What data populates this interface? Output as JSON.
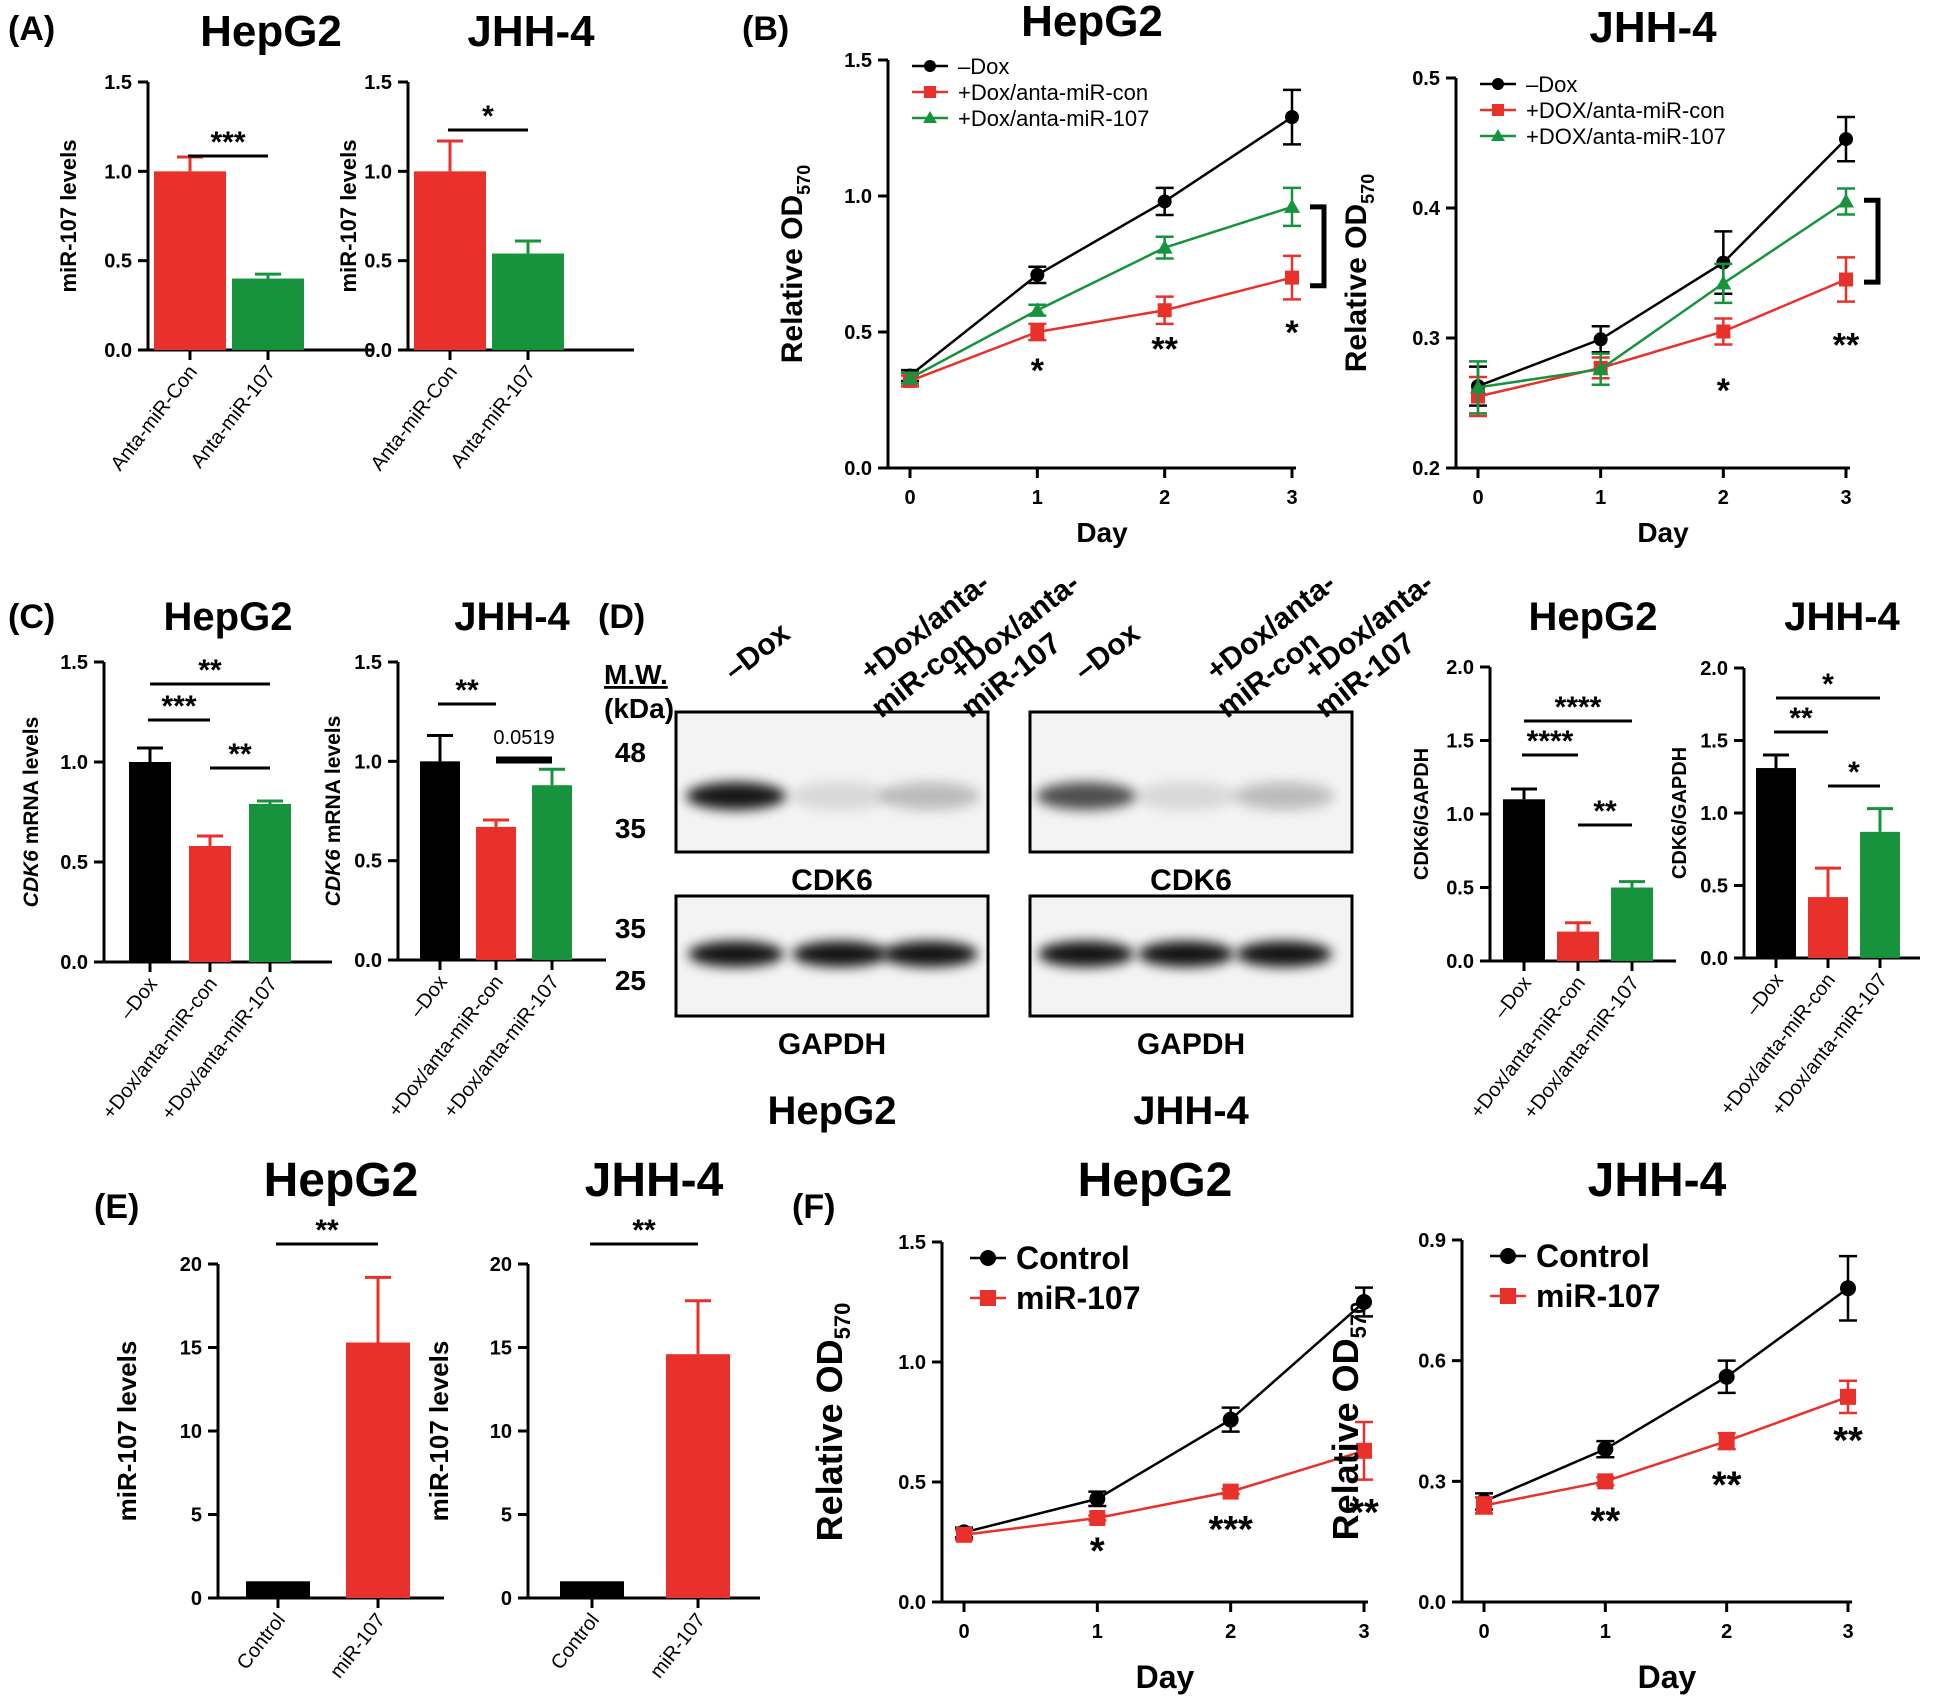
{
  "panel_labels": [
    "(A)",
    "(B)",
    "(C)",
    "(D)",
    "(E)",
    "(F)"
  ],
  "colors": {
    "black": "#000000",
    "red": "#e8312a",
    "green": "#17933e"
  },
  "chart_data": [
    {
      "id": "A1",
      "panel": "(A)",
      "type": "bar",
      "title": "HepG2",
      "ylabel": "miR-107 levels",
      "ylim": [
        0,
        1.5
      ],
      "yticks": [
        "0.0",
        "0.5",
        "1.0",
        "1.5"
      ],
      "categories": [
        "Anta-miR-Con",
        "Anta-miR-107"
      ],
      "values": [
        1.0,
        0.4
      ],
      "errors": [
        0.08,
        0.025
      ],
      "colors": [
        "red",
        "green"
      ],
      "brackets": [
        {
          "from": 0,
          "to": 1,
          "label": "***"
        }
      ]
    },
    {
      "id": "A2",
      "type": "bar",
      "title": "JHH-4",
      "ylabel": "miR-107 levels",
      "ylim": [
        0,
        1.5
      ],
      "yticks": [
        "0.0",
        "0.5",
        "1.0",
        "1.5"
      ],
      "categories": [
        "Anta-miR-Con",
        "Anta-miR-107"
      ],
      "values": [
        1.0,
        0.54
      ],
      "errors": [
        0.17,
        0.07
      ],
      "colors": [
        "red",
        "green"
      ],
      "brackets": [
        {
          "from": 0,
          "to": 1,
          "label": "*"
        }
      ]
    },
    {
      "id": "B1",
      "panel": "(B)",
      "type": "line",
      "title": "HepG2",
      "xlabel": "Day",
      "ylabel": "Relative OD",
      "ylabel_sub": "570",
      "ylim": [
        0,
        1.5
      ],
      "yticks": [
        "0.0",
        "0.5",
        "1.0",
        "1.5"
      ],
      "x": [
        0,
        1,
        2,
        3
      ],
      "xticks": [
        "0",
        "1",
        "2",
        "3"
      ],
      "series": [
        {
          "name": "–Dox",
          "color": "black",
          "marker": "circle",
          "values": [
            0.34,
            0.71,
            0.98,
            1.29
          ],
          "errors": [
            0.02,
            0.03,
            0.05,
            0.1
          ]
        },
        {
          "name": "+Dox/anta-miR-con",
          "color": "red",
          "marker": "square",
          "values": [
            0.32,
            0.5,
            0.58,
            0.7
          ],
          "errors": [
            0.02,
            0.03,
            0.05,
            0.08
          ]
        },
        {
          "name": "+Dox/anta-miR-107",
          "color": "green",
          "marker": "triangle",
          "values": [
            0.33,
            0.58,
            0.81,
            0.96
          ],
          "errors": [
            0.02,
            0.02,
            0.04,
            0.07
          ]
        }
      ],
      "annotations": [
        {
          "x": 1,
          "y": 0.36,
          "label": "*"
        },
        {
          "x": 2,
          "y": 0.44,
          "label": "**"
        },
        {
          "x": 3,
          "y": 0.5,
          "label": "*"
        }
      ],
      "side_bracket": {
        "y_top": 0.96,
        "y_bottom": 0.67
      }
    },
    {
      "id": "B2",
      "type": "line",
      "title": "JHH-4",
      "xlabel": "Day",
      "ylabel": "Relative OD",
      "ylabel_sub": "570",
      "ylim": [
        0.2,
        0.5
      ],
      "yticks": [
        "0.2",
        "0.3",
        "0.4",
        "0.5"
      ],
      "x": [
        0,
        1,
        2,
        3
      ],
      "xticks": [
        "0",
        "1",
        "2",
        "3"
      ],
      "series": [
        {
          "name": "–Dox",
          "color": "black",
          "marker": "circle",
          "values": [
            0.263,
            0.299,
            0.358,
            0.453
          ],
          "errors": [
            0.015,
            0.01,
            0.024,
            0.017
          ]
        },
        {
          "name": "+DOX/anta-miR-con",
          "color": "red",
          "marker": "square",
          "values": [
            0.255,
            0.277,
            0.305,
            0.345
          ],
          "errors": [
            0.015,
            0.008,
            0.01,
            0.017
          ]
        },
        {
          "name": "+DOX/anta-miR-107",
          "color": "green",
          "marker": "triangle",
          "values": [
            0.262,
            0.276,
            0.342,
            0.405
          ],
          "errors": [
            0.02,
            0.012,
            0.015,
            0.01
          ]
        }
      ],
      "annotations": [
        {
          "x": 2,
          "y": 0.26,
          "label": "*"
        },
        {
          "x": 3,
          "y": 0.295,
          "label": "**"
        }
      ],
      "side_bracket": {
        "y_top": 0.406,
        "y_bottom": 0.343
      }
    },
    {
      "id": "C1",
      "panel": "(C)",
      "type": "bar",
      "title": "HepG2",
      "ylabel": "CDK6 mRNA levels",
      "ylabel_italic": "CDK6",
      "ylabel_rest": " mRNA levels",
      "ylim": [
        0,
        1.5
      ],
      "yticks": [
        "0.0",
        "0.5",
        "1.0",
        "1.5"
      ],
      "categories": [
        "–Dox",
        "+Dox/anta-miR-con",
        "+Dox/anta-miR-107"
      ],
      "values": [
        1.0,
        0.58,
        0.79
      ],
      "errors": [
        0.07,
        0.05,
        0.015
      ],
      "colors": [
        "black",
        "red",
        "green"
      ],
      "brackets": [
        {
          "from": 0,
          "to": 2,
          "label": "**"
        },
        {
          "from": 0,
          "to": 1,
          "label": "***"
        },
        {
          "from": 1,
          "to": 2,
          "label": "**"
        }
      ]
    },
    {
      "id": "C2",
      "type": "bar",
      "title": "JHH-4",
      "ylabel": "CDK6 mRNA levels",
      "ylabel_italic": "CDK6",
      "ylabel_rest": " mRNA levels",
      "ylim": [
        0,
        1.5
      ],
      "yticks": [
        "0.0",
        "0.5",
        "1.0",
        "1.5"
      ],
      "categories": [
        "–Dox",
        "+Dox/anta-miR-con",
        "+Dox/anta-miR-107"
      ],
      "values": [
        1.0,
        0.67,
        0.88
      ],
      "errors": [
        0.13,
        0.035,
        0.08
      ],
      "colors": [
        "black",
        "red",
        "green"
      ],
      "brackets": [
        {
          "from": 0,
          "to": 1,
          "label": "**"
        },
        {
          "from": 1,
          "to": 2,
          "label": "0.0519",
          "thick": true
        }
      ]
    },
    {
      "id": "D1",
      "panel": "(D)",
      "type": "bar",
      "title": "HepG2",
      "ylabel": "CDK6/GAPDH",
      "ylim": [
        0,
        2.0
      ],
      "yticks": [
        "0.0",
        "0.5",
        "1.0",
        "1.5",
        "2.0"
      ],
      "categories": [
        "–Dox",
        "+Dox/anta-miR-con",
        "+Dox/anta-miR-107"
      ],
      "values": [
        1.1,
        0.2,
        0.5
      ],
      "errors": [
        0.07,
        0.06,
        0.04
      ],
      "colors": [
        "black",
        "red",
        "green"
      ],
      "brackets": [
        {
          "from": 0,
          "to": 2,
          "label": "****"
        },
        {
          "from": 0,
          "to": 1,
          "label": "****"
        },
        {
          "from": 1,
          "to": 2,
          "label": "**"
        }
      ]
    },
    {
      "id": "D2",
      "type": "bar",
      "title": "JHH-4",
      "ylabel": "CDK6/GAPDH",
      "ylim": [
        0,
        2.0
      ],
      "yticks": [
        "0.0",
        "0.5",
        "1.0",
        "1.5",
        "2.0"
      ],
      "categories": [
        "–Dox",
        "+Dox/anta-miR-con",
        "+Dox/anta-miR-107"
      ],
      "values": [
        1.31,
        0.42,
        0.87
      ],
      "errors": [
        0.09,
        0.2,
        0.16
      ],
      "colors": [
        "black",
        "red",
        "green"
      ],
      "brackets": [
        {
          "from": 0,
          "to": 2,
          "label": "*"
        },
        {
          "from": 0,
          "to": 1,
          "label": "**"
        },
        {
          "from": 1,
          "to": 2,
          "label": "*"
        }
      ]
    },
    {
      "id": "E1",
      "panel": "(E)",
      "type": "bar",
      "title": "HepG2",
      "ylabel": "miR-107 levels",
      "ylim": [
        0,
        20
      ],
      "yticks": [
        "0",
        "5",
        "10",
        "15",
        "20"
      ],
      "categories": [
        "Control",
        "miR-107"
      ],
      "values": [
        1.0,
        15.3
      ],
      "errors": [
        0,
        3.9
      ],
      "colors": [
        "black",
        "red"
      ],
      "brackets": [
        {
          "from": 0,
          "to": 1,
          "label": "**"
        }
      ]
    },
    {
      "id": "E2",
      "type": "bar",
      "title": "JHH-4",
      "ylabel": "miR-107 levels",
      "ylim": [
        0,
        20
      ],
      "yticks": [
        "0",
        "5",
        "10",
        "15",
        "20"
      ],
      "categories": [
        "Control",
        "miR-107"
      ],
      "values": [
        1.0,
        14.6
      ],
      "errors": [
        0,
        3.2
      ],
      "colors": [
        "black",
        "red"
      ],
      "brackets": [
        {
          "from": 0,
          "to": 1,
          "label": "**"
        }
      ]
    },
    {
      "id": "F1",
      "panel": "(F)",
      "type": "line",
      "title": "HepG2",
      "xlabel": "Day",
      "ylabel": "Relative OD",
      "ylabel_sub": "570",
      "ylim": [
        0,
        1.5
      ],
      "yticks": [
        "0.0",
        "0.5",
        "1.0",
        "1.5"
      ],
      "x": [
        0,
        1,
        2,
        3
      ],
      "xticks": [
        "0",
        "1",
        "2",
        "3"
      ],
      "series": [
        {
          "name": "Control",
          "color": "black",
          "marker": "circle",
          "values": [
            0.29,
            0.43,
            0.76,
            1.25
          ],
          "errors": [
            0.02,
            0.03,
            0.05,
            0.06
          ]
        },
        {
          "name": "miR-107",
          "color": "red",
          "marker": "square",
          "values": [
            0.28,
            0.35,
            0.46,
            0.63
          ],
          "errors": [
            0.02,
            0.01,
            0.01,
            0.12
          ]
        }
      ],
      "annotations": [
        {
          "x": 1,
          "y": 0.21,
          "label": "*"
        },
        {
          "x": 2,
          "y": 0.3,
          "label": "***"
        },
        {
          "x": 3,
          "y": 0.37,
          "label": "**"
        }
      ]
    },
    {
      "id": "F2",
      "type": "line",
      "title": "JHH-4",
      "xlabel": "Day",
      "ylabel": "Relative OD",
      "ylabel_sub": "570",
      "ylim": [
        0,
        0.9
      ],
      "yticks": [
        "0.0",
        "0.3",
        "0.6",
        "0.9"
      ],
      "x": [
        0,
        1,
        2,
        3
      ],
      "xticks": [
        "0",
        "1",
        "2",
        "3"
      ],
      "series": [
        {
          "name": "Control",
          "color": "black",
          "marker": "circle",
          "values": [
            0.25,
            0.38,
            0.56,
            0.78
          ],
          "errors": [
            0.02,
            0.02,
            0.04,
            0.08
          ]
        },
        {
          "name": "miR-107",
          "color": "red",
          "marker": "square",
          "values": [
            0.24,
            0.3,
            0.4,
            0.51
          ],
          "errors": [
            0.02,
            0.01,
            0.02,
            0.04
          ]
        }
      ],
      "annotations": [
        {
          "x": 1,
          "y": 0.2,
          "label": "**"
        },
        {
          "x": 2,
          "y": 0.29,
          "label": "**"
        },
        {
          "x": 3,
          "y": 0.4,
          "label": "**"
        }
      ]
    }
  ],
  "blot": {
    "mw_label": "M.W.",
    "kda_label": "(kDa)",
    "lane_labels": [
      "–Dox",
      "+Dox/anta-\nmiR-con",
      "+Dox/anta-\nmiR-107"
    ],
    "marker_upper": [
      "48",
      "35"
    ],
    "marker_lower": [
      "35",
      "25"
    ],
    "protein_upper": "CDK6",
    "protein_lower": "GAPDH",
    "cell_lines": [
      "HepG2",
      "JHH-4"
    ],
    "cdk6_intensity_hepg2": [
      1.0,
      0.12,
      0.25
    ],
    "cdk6_intensity_jhh4": [
      0.75,
      0.12,
      0.25
    ]
  }
}
